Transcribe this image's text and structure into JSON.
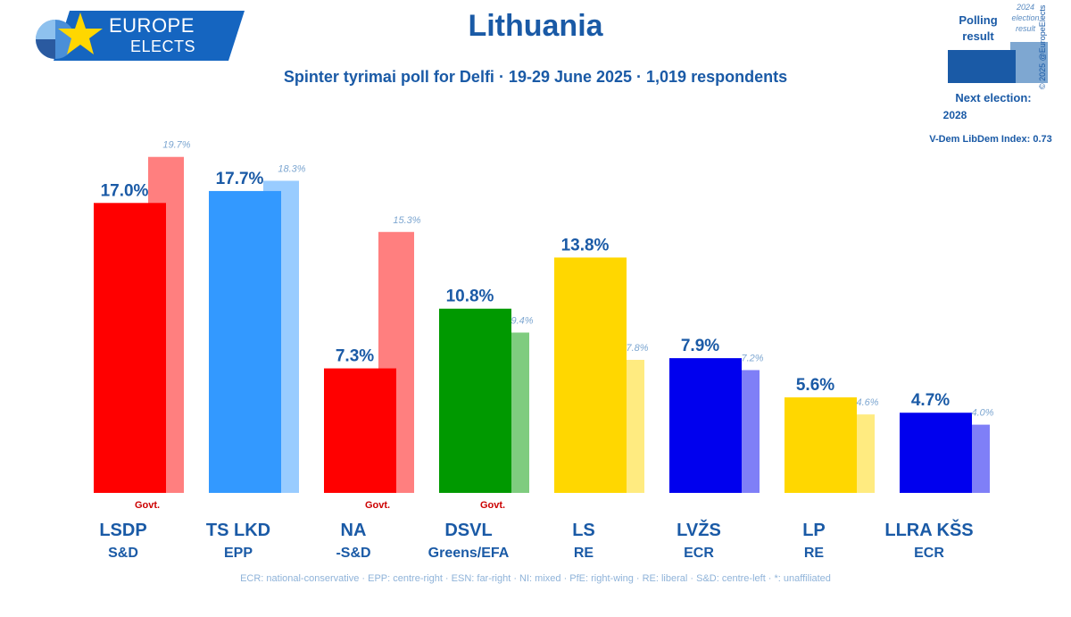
{
  "logo": {
    "line1": "EUROPE",
    "line2": "ELECTS"
  },
  "title": "Lithuania",
  "subtitle": "Spinter tyrimai poll for Delfi · 19-29 June 2025 · 1,019 respondents",
  "legend": {
    "polling_label": "Polling result",
    "election_label": "2024 election result",
    "next_election_label": "Next election:",
    "next_election_year": "2028",
    "vdem": "V-Dem LibDem Index: 0.73",
    "copyright": "© 2025 @EuropeElects"
  },
  "footnote": "ECR: national-conservative · EPP: centre-right · ESN: far-right · NI: mixed · PfE: right-wing · RE: liberal · S&D: centre-left · *: unaffiliated",
  "chart_data": {
    "type": "bar",
    "title": "Lithuania",
    "ylim": [
      0,
      20
    ],
    "categories": [
      "LSDP",
      "TS LKD",
      "NA",
      "DSVL",
      "LS",
      "LVŽS",
      "LP",
      "LLRA KŠS"
    ],
    "groups": [
      "S&D",
      "EPP",
      "-S&D",
      "Greens/EFA",
      "RE",
      "ECR",
      "RE",
      "ECR"
    ],
    "govt": [
      true,
      false,
      true,
      true,
      false,
      false,
      false,
      false
    ],
    "govt_label": "Govt.",
    "series": [
      {
        "name": "Polling result",
        "values": [
          17.0,
          17.7,
          7.3,
          10.8,
          13.8,
          7.9,
          5.6,
          4.7
        ],
        "labels": [
          "17.0%",
          "17.7%",
          "7.3%",
          "10.8%",
          "13.8%",
          "7.9%",
          "5.6%",
          "4.7%"
        ]
      },
      {
        "name": "2024 election result",
        "values": [
          19.7,
          18.3,
          15.3,
          9.4,
          7.8,
          7.2,
          4.6,
          4.0
        ],
        "labels": [
          "19.7%",
          "18.3%",
          "15.3%",
          "9.4%",
          "7.8%",
          "7.2%",
          "4.6%",
          "4.0%"
        ]
      }
    ],
    "colors": {
      "poll": [
        "#ff0000",
        "#3399ff",
        "#ff0000",
        "#009900",
        "#ffd700",
        "#0000ee",
        "#ffd700",
        "#0000ee"
      ],
      "election": [
        "#ff7f7f",
        "#99ccff",
        "#ff7f7f",
        "#7fcc7f",
        "#ffeb80",
        "#7f7ff7",
        "#ffeb80",
        "#7f7ff7"
      ]
    },
    "label_color": "#1a5aa6",
    "election_label_color": "#7ea7d1",
    "govt_color": "#cc0000"
  }
}
